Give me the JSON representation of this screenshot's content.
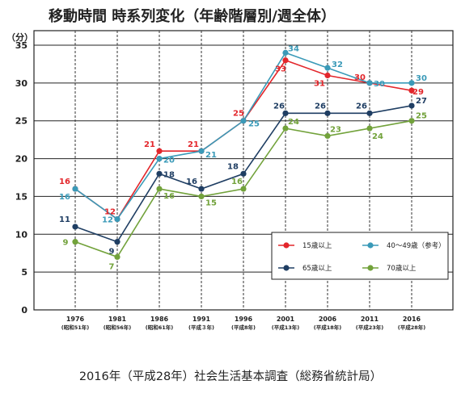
{
  "title": "移動時間 時系列変化（年齢階層別/週全体）",
  "source": "2016年（平成28年）社会生活基本調査（総務省統計局）",
  "chart_data": {
    "type": "line",
    "ylabel": "（分）",
    "ylim": [
      0,
      35
    ],
    "yticks": [
      0,
      5,
      10,
      15,
      20,
      25,
      30,
      35
    ],
    "categories": [
      "1976",
      "1981",
      "1986",
      "1991",
      "1996",
      "2001",
      "2006",
      "2011",
      "2016"
    ],
    "category_sublabels": [
      "(昭和51年)",
      "(昭和56年)",
      "(昭和61年)",
      "(平成３年)",
      "(平成8年)",
      "(平成13年)",
      "(平成18年)",
      "(平成23年)",
      "(平成28年)"
    ],
    "grid": true,
    "legend_position": "bottom-right",
    "series": [
      {
        "name": "15歳以上",
        "color": "#e3262b",
        "values": [
          16,
          12,
          21,
          21,
          25,
          33,
          31,
          30,
          29
        ]
      },
      {
        "name": "40～49歳（参考）",
        "color": "#3a9ab8",
        "values": [
          16,
          12,
          20,
          21,
          25,
          34,
          32,
          30,
          30
        ]
      },
      {
        "name": "65歳以上",
        "color": "#1f3e63",
        "values": [
          11,
          9,
          18,
          16,
          18,
          26,
          26,
          26,
          27
        ]
      },
      {
        "name": "70歳以上",
        "color": "#72a23b",
        "values": [
          9,
          7,
          16,
          15,
          16,
          24,
          23,
          24,
          25
        ]
      }
    ]
  }
}
